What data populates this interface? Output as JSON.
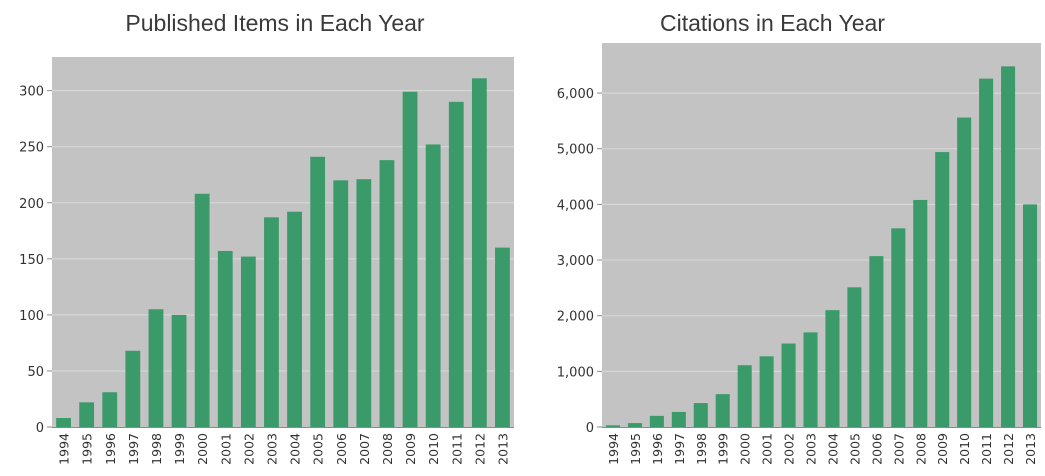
{
  "chart_data": [
    {
      "type": "bar",
      "title": "Published Items in Each Year",
      "xlabel": "",
      "ylabel": "",
      "categories": [
        "1994",
        "1995",
        "1996",
        "1997",
        "1998",
        "1999",
        "2000",
        "2001",
        "2002",
        "2003",
        "2004",
        "2005",
        "2006",
        "2007",
        "2008",
        "2009",
        "2010",
        "2011",
        "2012",
        "2013"
      ],
      "values": [
        8,
        22,
        31,
        68,
        105,
        100,
        208,
        157,
        152,
        187,
        192,
        241,
        220,
        221,
        238,
        299,
        252,
        290,
        311,
        160
      ],
      "ylim": [
        0,
        330
      ],
      "yticks": [
        0,
        50,
        100,
        150,
        200,
        250,
        300
      ],
      "ytick_labels": [
        "0",
        "50",
        "100",
        "150",
        "200",
        "250",
        "300"
      ],
      "grid": true,
      "colors": {
        "bar": "#3a9a6a",
        "plot_bg": "#c3c3c3",
        "grid": "#dadada",
        "axis": "#8a8a8a",
        "tick_text": "#333333"
      }
    },
    {
      "type": "bar",
      "title": "Citations in Each Year",
      "xlabel": "",
      "ylabel": "",
      "categories": [
        "1994",
        "1995",
        "1996",
        "1997",
        "1998",
        "1999",
        "2000",
        "2001",
        "2002",
        "2003",
        "2004",
        "2005",
        "2006",
        "2007",
        "2008",
        "2009",
        "2010",
        "2011",
        "2012",
        "2013"
      ],
      "values": [
        30,
        70,
        200,
        270,
        430,
        590,
        1110,
        1270,
        1500,
        1700,
        2100,
        2510,
        3070,
        3570,
        4080,
        4940,
        5560,
        6260,
        6480,
        4000
      ],
      "ylim": [
        0,
        6900
      ],
      "yticks": [
        0,
        1000,
        2000,
        3000,
        4000,
        5000,
        6000
      ],
      "ytick_labels": [
        "0",
        "1,000",
        "2,000",
        "3,000",
        "4,000",
        "5,000",
        "6,000"
      ],
      "grid": true,
      "colors": {
        "bar": "#3a9a6a",
        "plot_bg": "#c3c3c3",
        "grid": "#dadada",
        "axis": "#8a8a8a",
        "tick_text": "#333333"
      }
    }
  ]
}
